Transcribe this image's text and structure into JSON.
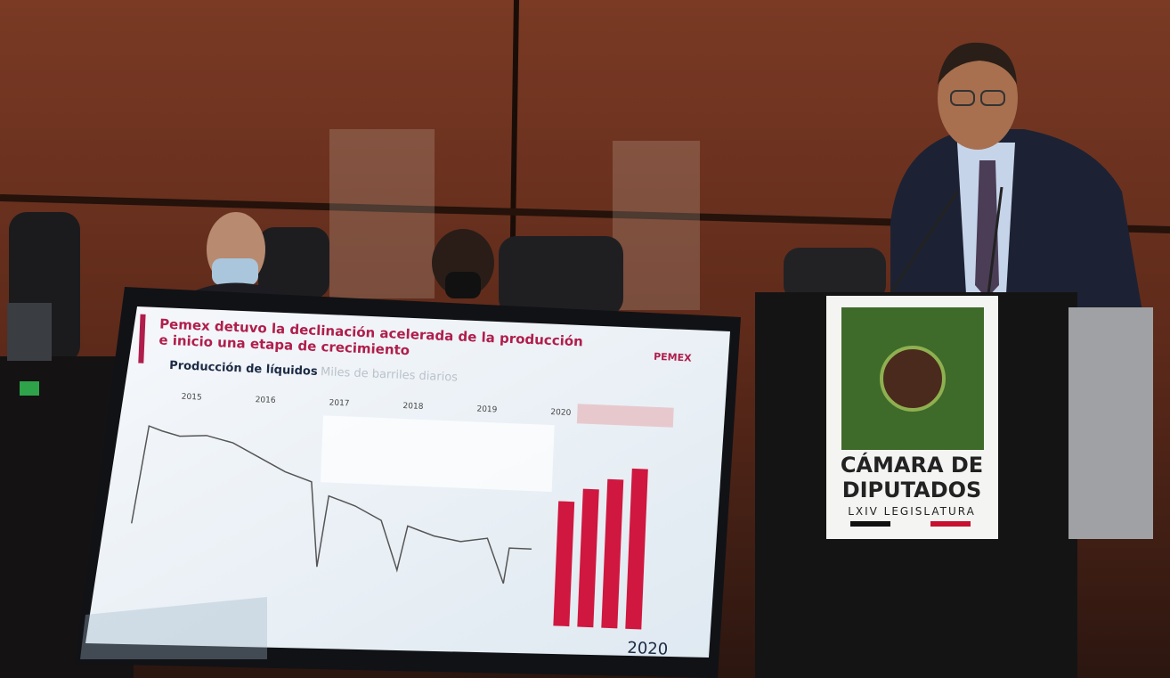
{
  "screen": {
    "title_line1": "Pemex detuvo la declinación acelerada de la producción",
    "title_line2": "e inicio una etapa de crecimiento",
    "logo": "PEMEX",
    "subtitle": "Producción de líquidos",
    "subtitle_unit": "Miles de barriles diarios",
    "years": [
      "2015",
      "2016",
      "2017",
      "2018",
      "2019",
      "2020"
    ],
    "footer_year": "2020"
  },
  "podium": {
    "line1": "CÁMARA DE",
    "line2": "DIPUTADOS",
    "line3": "LXIV LEGISLATURA"
  }
}
